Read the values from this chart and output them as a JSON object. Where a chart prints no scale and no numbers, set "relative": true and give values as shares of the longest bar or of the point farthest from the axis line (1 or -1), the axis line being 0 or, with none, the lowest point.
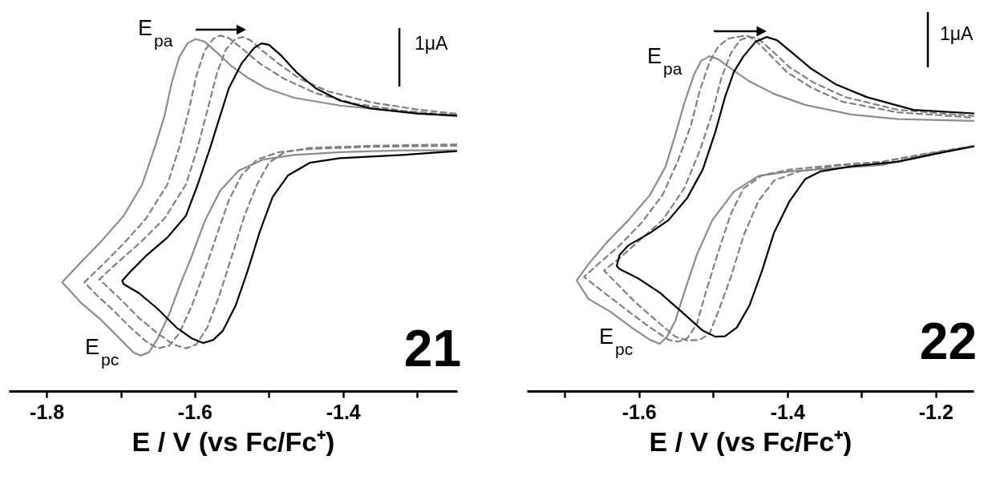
{
  "chart_data": [
    {
      "type": "line",
      "relative": true,
      "tick_labels": "x",
      "xlabel": "E / V (vs Fc/Fc⁺)",
      "xlim": [
        -1.851,
        -1.246
      ],
      "xticks": [
        -1.8,
        {
          "value": -1.7,
          "label": null
        },
        -1.6,
        {
          "value": -1.5,
          "label": null
        },
        -1.4,
        {
          "value": -1.3,
          "label": null
        }
      ],
      "annotations": [
        "E$_{pa}$",
        "E$_{pc}$",
        "1μA",
        "21"
      ],
      "series": [
        {
          "color": "#8c8c8c",
          "line_style": "solid",
          "x": [
            -1.247,
            -1.32,
            -1.404,
            -1.466,
            -1.508,
            -1.541,
            -1.566,
            -1.587,
            -1.604,
            -1.621,
            -1.635,
            -1.65,
            -1.662,
            -1.673,
            -1.683,
            -1.704,
            -1.729,
            -1.754,
            -1.779,
            -1.754,
            -1.725,
            -1.696,
            -1.671,
            -1.654,
            -1.641,
            -1.631,
            -1.621,
            -1.61,
            -1.599,
            -1.587,
            -1.57,
            -1.55,
            -1.529,
            -1.504,
            -1.466,
            -1.404,
            -1.32,
            -1.247
          ],
          "values": [
            0.677,
            0.677,
            0.672,
            0.664,
            0.651,
            0.62,
            0.563,
            0.476,
            0.38,
            0.293,
            0.214,
            0.148,
            0.109,
            0.1,
            0.109,
            0.153,
            0.205,
            0.249,
            0.306,
            0.362,
            0.424,
            0.493,
            0.581,
            0.686,
            0.773,
            0.869,
            0.939,
            0.978,
            0.99,
            0.983,
            0.952,
            0.913,
            0.882,
            0.852,
            0.825,
            0.803,
            0.786,
            0.773
          ]
        },
        {
          "color": "#808080",
          "line_style": "dashed",
          "x": [
            -1.247,
            -1.362,
            -1.445,
            -1.487,
            -1.516,
            -1.537,
            -1.554,
            -1.57,
            -1.587,
            -1.604,
            -1.621,
            -1.635,
            -1.65,
            -1.666,
            -1.687,
            -1.712,
            -1.733,
            -1.749,
            -1.725,
            -1.696,
            -1.666,
            -1.637,
            -1.621,
            -1.608,
            -1.598,
            -1.587,
            -1.575,
            -1.566,
            -1.554,
            -1.537,
            -1.512,
            -1.479,
            -1.437,
            -1.383,
            -1.32,
            -1.247
          ],
          "values": [
            0.69,
            0.687,
            0.681,
            0.672,
            0.651,
            0.607,
            0.537,
            0.441,
            0.336,
            0.24,
            0.162,
            0.127,
            0.12,
            0.14,
            0.179,
            0.231,
            0.271,
            0.306,
            0.354,
            0.415,
            0.485,
            0.581,
            0.686,
            0.79,
            0.886,
            0.956,
            0.991,
            1.0,
            0.993,
            0.965,
            0.921,
            0.878,
            0.838,
            0.808,
            0.789,
            0.775
          ]
        },
        {
          "color": "#808080",
          "line_style": "dashed",
          "x": [
            -1.247,
            -1.362,
            -1.445,
            -1.479,
            -1.5,
            -1.516,
            -1.533,
            -1.55,
            -1.566,
            -1.583,
            -1.598,
            -1.612,
            -1.629,
            -1.65,
            -1.675,
            -1.704,
            -1.729,
            -1.704,
            -1.675,
            -1.641,
            -1.612,
            -1.596,
            -1.583,
            -1.57,
            -1.558,
            -1.545,
            -1.535,
            -1.525,
            -1.508,
            -1.487,
            -1.458,
            -1.42,
            -1.362,
            -1.299,
            -1.247
          ],
          "values": [
            0.694,
            0.69,
            0.684,
            0.672,
            0.642,
            0.581,
            0.493,
            0.38,
            0.275,
            0.179,
            0.131,
            0.12,
            0.131,
            0.162,
            0.205,
            0.266,
            0.314,
            0.362,
            0.415,
            0.485,
            0.581,
            0.686,
            0.79,
            0.895,
            0.961,
            0.991,
            0.996,
            0.987,
            0.956,
            0.921,
            0.878,
            0.843,
            0.812,
            0.792,
            0.78
          ]
        },
        {
          "color": "#000000",
          "line_style": "solid",
          "x": [
            -1.247,
            -1.32,
            -1.404,
            -1.445,
            -1.474,
            -1.495,
            -1.512,
            -1.529,
            -1.545,
            -1.562,
            -1.575,
            -1.589,
            -1.604,
            -1.625,
            -1.65,
            -1.675,
            -1.696,
            -1.698,
            -1.687,
            -1.666,
            -1.637,
            -1.612,
            -1.596,
            -1.579,
            -1.566,
            -1.554,
            -1.537,
            -1.52,
            -1.51,
            -1.5,
            -1.483,
            -1.462,
            -1.437,
            -1.404,
            -1.362,
            -1.299,
            -1.247
          ],
          "values": [
            0.675,
            0.664,
            0.655,
            0.642,
            0.607,
            0.546,
            0.45,
            0.336,
            0.24,
            0.17,
            0.144,
            0.135,
            0.148,
            0.179,
            0.231,
            0.275,
            0.301,
            0.31,
            0.336,
            0.38,
            0.432,
            0.493,
            0.581,
            0.686,
            0.773,
            0.852,
            0.921,
            0.965,
            0.978,
            0.974,
            0.943,
            0.895,
            0.852,
            0.817,
            0.795,
            0.78,
            0.775
          ]
        }
      ]
    },
    {
      "type": "line",
      "relative": true,
      "tick_labels": "x",
      "xlabel": "E / V (vs Fc/Fc⁺)",
      "xlim": [
        -1.751,
        -1.149
      ],
      "xticks": [
        {
          "value": -1.7,
          "label": null
        },
        -1.6,
        {
          "value": -1.5,
          "label": null
        },
        -1.4,
        {
          "value": -1.3,
          "label": null
        },
        -1.2
      ],
      "annotations": [
        "E$_{pa}$",
        "E$_{pc}$",
        "1μA",
        "22"
      ],
      "series": [
        {
          "color": "#8c8c8c",
          "line_style": "solid",
          "x": [
            -1.149,
            -1.209,
            -1.272,
            -1.334,
            -1.397,
            -1.439,
            -1.472,
            -1.501,
            -1.522,
            -1.539,
            -1.551,
            -1.562,
            -1.572,
            -1.585,
            -1.61,
            -1.639,
            -1.668,
            -1.684,
            -1.668,
            -1.643,
            -1.614,
            -1.585,
            -1.564,
            -1.551,
            -1.539,
            -1.526,
            -1.516,
            -1.505,
            -1.493,
            -1.476,
            -1.451,
            -1.418,
            -1.376,
            -1.314,
            -1.251,
            -1.149
          ],
          "values": [
            0.689,
            0.667,
            0.636,
            0.627,
            0.618,
            0.605,
            0.561,
            0.481,
            0.383,
            0.277,
            0.197,
            0.153,
            0.133,
            0.144,
            0.179,
            0.224,
            0.259,
            0.311,
            0.357,
            0.419,
            0.481,
            0.552,
            0.632,
            0.72,
            0.809,
            0.889,
            0.929,
            0.942,
            0.933,
            0.907,
            0.871,
            0.836,
            0.805,
            0.778,
            0.765,
            0.76
          ]
        },
        {
          "color": "#808080",
          "line_style": "dashed",
          "x": [
            -1.149,
            -1.209,
            -1.272,
            -1.334,
            -1.397,
            -1.434,
            -1.459,
            -1.476,
            -1.493,
            -1.51,
            -1.522,
            -1.535,
            -1.547,
            -1.56,
            -1.585,
            -1.614,
            -1.647,
            -1.674,
            -1.655,
            -1.626,
            -1.597,
            -1.568,
            -1.547,
            -1.53,
            -1.518,
            -1.505,
            -1.493,
            -1.48,
            -1.468,
            -1.455,
            -1.443,
            -1.426,
            -1.401,
            -1.368,
            -1.326,
            -1.251,
            -1.149
          ],
          "values": [
            0.689,
            0.669,
            0.645,
            0.636,
            0.623,
            0.607,
            0.57,
            0.499,
            0.392,
            0.277,
            0.188,
            0.148,
            0.139,
            0.144,
            0.179,
            0.224,
            0.277,
            0.321,
            0.357,
            0.41,
            0.472,
            0.552,
            0.65,
            0.747,
            0.845,
            0.925,
            0.969,
            0.991,
            0.996,
            1.0,
            0.987,
            0.951,
            0.898,
            0.854,
            0.814,
            0.784,
            0.769
          ]
        },
        {
          "color": "#808080",
          "line_style": "dashed",
          "x": [
            -1.149,
            -1.209,
            -1.272,
            -1.334,
            -1.384,
            -1.418,
            -1.439,
            -1.459,
            -1.476,
            -1.493,
            -1.505,
            -1.518,
            -1.535,
            -1.551,
            -1.576,
            -1.605,
            -1.63,
            -1.647,
            -1.626,
            -1.597,
            -1.568,
            -1.539,
            -1.518,
            -1.501,
            -1.489,
            -1.476,
            -1.464,
            -1.451,
            -1.439,
            -1.422,
            -1.397,
            -1.364,
            -1.322,
            -1.251,
            -1.149
          ],
          "values": [
            0.689,
            0.669,
            0.645,
            0.634,
            0.618,
            0.592,
            0.534,
            0.437,
            0.321,
            0.224,
            0.161,
            0.144,
            0.142,
            0.153,
            0.197,
            0.25,
            0.303,
            0.339,
            0.374,
            0.428,
            0.481,
            0.57,
            0.676,
            0.783,
            0.88,
            0.951,
            0.987,
            0.997,
            0.991,
            0.96,
            0.911,
            0.867,
            0.827,
            0.791,
            0.774
          ]
        },
        {
          "color": "#000000",
          "line_style": "solid",
          "x": [
            -1.149,
            -1.201,
            -1.251,
            -1.314,
            -1.355,
            -1.376,
            -1.397,
            -1.418,
            -1.434,
            -1.451,
            -1.468,
            -1.484,
            -1.497,
            -1.514,
            -1.543,
            -1.572,
            -1.601,
            -1.626,
            -1.63,
            -1.626,
            -1.614,
            -1.585,
            -1.56,
            -1.535,
            -1.514,
            -1.497,
            -1.484,
            -1.472,
            -1.459,
            -1.443,
            -1.428,
            -1.414,
            -1.393,
            -1.368,
            -1.334,
            -1.293,
            -1.23,
            -1.149
          ],
          "values": [
            0.688,
            0.667,
            0.645,
            0.632,
            0.618,
            0.596,
            0.534,
            0.445,
            0.339,
            0.241,
            0.179,
            0.154,
            0.153,
            0.17,
            0.224,
            0.277,
            0.317,
            0.343,
            0.352,
            0.383,
            0.41,
            0.445,
            0.481,
            0.543,
            0.623,
            0.729,
            0.827,
            0.898,
            0.942,
            0.982,
            0.996,
            0.987,
            0.951,
            0.907,
            0.862,
            0.827,
            0.791,
            0.781
          ]
        }
      ]
    }
  ]
}
